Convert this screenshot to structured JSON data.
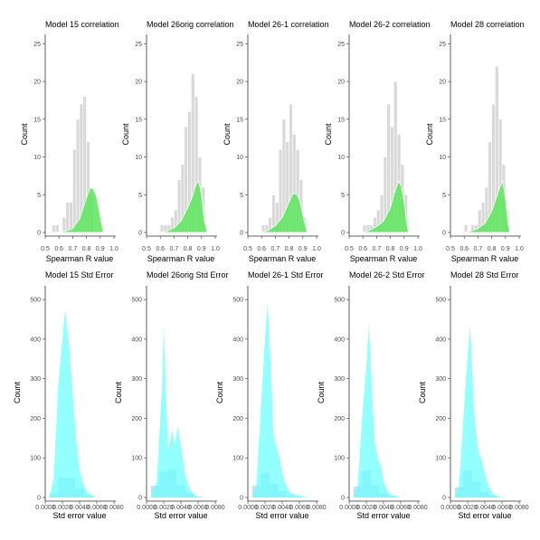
{
  "colors": {
    "background": "#ffffff",
    "hist_fill": "#d9d9d9",
    "hist_stroke": "#ffffff",
    "corr_density_fill": "#5ce65c",
    "stderr_density_fill": "#66ffff",
    "stderr_hist_fill": "#7fbfdf",
    "axis": "#333333"
  },
  "chart_data": [
    {
      "type": "bar",
      "title": "Model 15 correlation",
      "xlabel": "Spearman R value",
      "ylabel": "Count",
      "xlim": [
        0.5,
        1.0
      ],
      "ylim": [
        0,
        26
      ],
      "xticks": [
        "0.5",
        "0.6",
        "0.7",
        "0.8",
        "0.9",
        "1.0"
      ],
      "yticks": [
        "0",
        "5",
        "10",
        "15",
        "20",
        "25"
      ],
      "bin_start": 0.55,
      "bin_width": 0.025,
      "counts": [
        1,
        1,
        0,
        2,
        4,
        4,
        11,
        15,
        17,
        18,
        12,
        5
      ],
      "density_overlay": {
        "x": [
          0.55,
          0.6,
          0.65,
          0.7,
          0.75,
          0.8,
          0.825,
          0.85,
          0.875,
          0.9,
          0.92
        ],
        "y": [
          0,
          0.05,
          0.2,
          0.5,
          1.8,
          4.6,
          5.9,
          5.8,
          4.6,
          2.2,
          0.3
        ]
      }
    },
    {
      "type": "bar",
      "title": "Model 26orig correlation",
      "xlabel": "Spearman R value",
      "ylabel": "Count",
      "xlim": [
        0.5,
        1.0
      ],
      "ylim": [
        0,
        26
      ],
      "xticks": [
        "0.5",
        "0.6",
        "0.7",
        "0.8",
        "0.9",
        "1.0"
      ],
      "yticks": [
        "0",
        "5",
        "10",
        "15",
        "20",
        "25"
      ],
      "bin_start": 0.6,
      "bin_width": 0.025,
      "counts": [
        1,
        1,
        1,
        2,
        3,
        7,
        9,
        14,
        16,
        21,
        18,
        10,
        6
      ],
      "density_overlay": {
        "x": [
          0.6,
          0.65,
          0.7,
          0.75,
          0.8,
          0.83,
          0.86,
          0.88,
          0.9,
          0.92,
          0.94
        ],
        "y": [
          0,
          0.2,
          0.6,
          1.5,
          3.3,
          4.6,
          6.4,
          6.8,
          5.0,
          1.6,
          0.2
        ]
      }
    },
    {
      "type": "bar",
      "title": "Model 26-1 correlation",
      "xlabel": "Spearman R value",
      "ylabel": "Count",
      "xlim": [
        0.5,
        1.0
      ],
      "ylim": [
        0,
        26
      ],
      "xticks": [
        "0.5",
        "0.6",
        "0.7",
        "0.8",
        "0.9",
        "1.0"
      ],
      "yticks": [
        "0",
        "5",
        "10",
        "15",
        "20",
        "25"
      ],
      "bin_start": 0.6,
      "bin_width": 0.025,
      "counts": [
        1,
        1,
        2,
        5,
        4,
        11,
        15,
        12,
        17,
        13,
        11,
        7,
        2
      ],
      "density_overlay": {
        "x": [
          0.6,
          0.65,
          0.7,
          0.75,
          0.8,
          0.83,
          0.86,
          0.88,
          0.9,
          0.92,
          0.93
        ],
        "y": [
          0,
          0.3,
          0.9,
          2.0,
          4.0,
          5.2,
          5.0,
          4.0,
          2.3,
          0.8,
          0.2
        ]
      }
    },
    {
      "type": "bar",
      "title": "Model 26-2 correlation",
      "xlabel": "Spearman R value",
      "ylabel": "Count",
      "xlim": [
        0.5,
        1.0
      ],
      "ylim": [
        0,
        26
      ],
      "xticks": [
        "0.5",
        "0.6",
        "0.7",
        "0.8",
        "0.9",
        "1.0"
      ],
      "yticks": [
        "0",
        "5",
        "10",
        "15",
        "20",
        "25"
      ],
      "bin_start": 0.6,
      "bin_width": 0.025,
      "counts": [
        1,
        1,
        1,
        2,
        3,
        5,
        10,
        17,
        14,
        20,
        13,
        9,
        5
      ],
      "density_overlay": {
        "x": [
          0.6,
          0.65,
          0.7,
          0.75,
          0.8,
          0.83,
          0.86,
          0.88,
          0.9,
          0.92,
          0.93
        ],
        "y": [
          0,
          0.3,
          0.8,
          1.5,
          3.3,
          5.3,
          6.8,
          6.1,
          4.1,
          1.1,
          0.2
        ]
      }
    },
    {
      "type": "bar",
      "title": "Model 28 correlation",
      "xlabel": "Spearman R value",
      "ylabel": "Count",
      "xlim": [
        0.5,
        1.0
      ],
      "ylim": [
        0,
        26
      ],
      "xticks": [
        "0.5",
        "0.6",
        "0.7",
        "0.8",
        "0.9",
        "1.0"
      ],
      "yticks": [
        "0",
        "5",
        "10",
        "15",
        "20",
        "25"
      ],
      "bin_start": 0.6,
      "bin_width": 0.025,
      "counts": [
        1,
        0,
        1,
        1,
        3,
        4,
        6,
        12,
        17,
        22,
        15,
        9,
        3
      ],
      "density_overlay": {
        "x": [
          0.6,
          0.65,
          0.7,
          0.75,
          0.8,
          0.83,
          0.86,
          0.88,
          0.9,
          0.92,
          0.93
        ],
        "y": [
          0,
          0.2,
          0.5,
          1.2,
          2.8,
          4.4,
          6.0,
          6.8,
          4.6,
          1.1,
          0.2
        ]
      }
    },
    {
      "type": "area",
      "title": "Model 15 Std Error",
      "xlabel": "Std error value",
      "ylabel": "Count",
      "xlim": [
        0,
        0.008
      ],
      "ylim": [
        0,
        530
      ],
      "xticks": [
        "0.0000",
        "0.0020",
        "0.0040",
        "0.0060",
        "0.0080"
      ],
      "yticks": [
        "0",
        "100",
        "200",
        "300",
        "400",
        "500"
      ],
      "bin_start": 0.0005,
      "bin_width": 0.001,
      "counts": [
        10,
        50,
        48,
        22,
        5
      ],
      "density_overlay": {
        "x": [
          0.0005,
          0.001,
          0.0015,
          0.002,
          0.0023,
          0.0028,
          0.0032,
          0.0036,
          0.004,
          0.0045,
          0.005,
          0.006
        ],
        "y": [
          0,
          50,
          280,
          400,
          475,
          380,
          260,
          150,
          70,
          30,
          10,
          0
        ]
      }
    },
    {
      "type": "area",
      "title": "Model 26orig Std Error",
      "xlabel": "Std error value",
      "ylabel": "Count",
      "xlim": [
        0,
        0.008
      ],
      "ylim": [
        0,
        530
      ],
      "xticks": [
        "0.0000",
        "0.0020",
        "0.0040",
        "0.0060",
        "0.0080"
      ],
      "yticks": [
        "0",
        "100",
        "200",
        "300",
        "400",
        "500"
      ],
      "bin_start": 0.0005,
      "bin_width": 0.001,
      "counts": [
        30,
        65,
        70,
        30,
        10,
        2
      ],
      "density_overlay": {
        "x": [
          0.0005,
          0.0012,
          0.0018,
          0.002,
          0.0022,
          0.0025,
          0.0028,
          0.003,
          0.0033,
          0.0036,
          0.004,
          0.0045,
          0.005,
          0.006
        ],
        "y": [
          0,
          40,
          280,
          440,
          300,
          120,
          150,
          170,
          130,
          180,
          130,
          60,
          20,
          0
        ]
      }
    },
    {
      "type": "area",
      "title": "Model 26-1 Std Error",
      "xlabel": "Std error value",
      "ylabel": "Count",
      "xlim": [
        0,
        0.008
      ],
      "ylim": [
        0,
        530
      ],
      "xticks": [
        "0.0000",
        "0.0020",
        "0.0040",
        "0.0060",
        "0.0080"
      ],
      "yticks": [
        "0",
        "100",
        "200",
        "300",
        "400",
        "500"
      ],
      "bin_start": 0.0005,
      "bin_width": 0.001,
      "counts": [
        30,
        62,
        35,
        15,
        5,
        2
      ],
      "density_overlay": {
        "x": [
          0.0005,
          0.001,
          0.0015,
          0.002,
          0.0023,
          0.0027,
          0.003,
          0.0033,
          0.0037,
          0.004,
          0.0045,
          0.005,
          0.006,
          0.007
        ],
        "y": [
          0,
          30,
          220,
          400,
          495,
          310,
          160,
          130,
          100,
          60,
          30,
          10,
          5,
          0
        ]
      }
    },
    {
      "type": "area",
      "title": "Model 26-2 Std Error",
      "xlabel": "Std error value",
      "ylabel": "Count",
      "xlim": [
        0,
        0.008
      ],
      "ylim": [
        0,
        530
      ],
      "xticks": [
        "0.0000",
        "0.0020",
        "0.0040",
        "0.0060",
        "0.0080"
      ],
      "yticks": [
        "0",
        "100",
        "200",
        "300",
        "400",
        "500"
      ],
      "bin_start": 0.0005,
      "bin_width": 0.001,
      "counts": [
        28,
        68,
        30,
        10,
        5
      ],
      "density_overlay": {
        "x": [
          0.0005,
          0.001,
          0.0015,
          0.002,
          0.0023,
          0.0027,
          0.003,
          0.0033,
          0.0037,
          0.004,
          0.0045,
          0.005,
          0.006
        ],
        "y": [
          0,
          30,
          200,
          330,
          440,
          250,
          140,
          100,
          80,
          40,
          15,
          5,
          0
        ]
      }
    },
    {
      "type": "area",
      "title": "Model 28 Std Error",
      "xlabel": "Std error value",
      "ylabel": "Count",
      "xlim": [
        0,
        0.008
      ],
      "ylim": [
        0,
        530
      ],
      "xticks": [
        "0.0000",
        "0.0020",
        "0.0040",
        "0.0060",
        "0.0080"
      ],
      "yticks": [
        "0",
        "100",
        "200",
        "300",
        "400",
        "500"
      ],
      "bin_start": 0.0005,
      "bin_width": 0.001,
      "counts": [
        25,
        68,
        40,
        15,
        5
      ],
      "density_overlay": {
        "x": [
          0.0005,
          0.001,
          0.0015,
          0.002,
          0.0023,
          0.0027,
          0.003,
          0.0033,
          0.0036,
          0.004,
          0.0045,
          0.005,
          0.006
        ],
        "y": [
          0,
          30,
          200,
          360,
          435,
          240,
          160,
          110,
          100,
          60,
          25,
          8,
          0
        ]
      }
    }
  ]
}
